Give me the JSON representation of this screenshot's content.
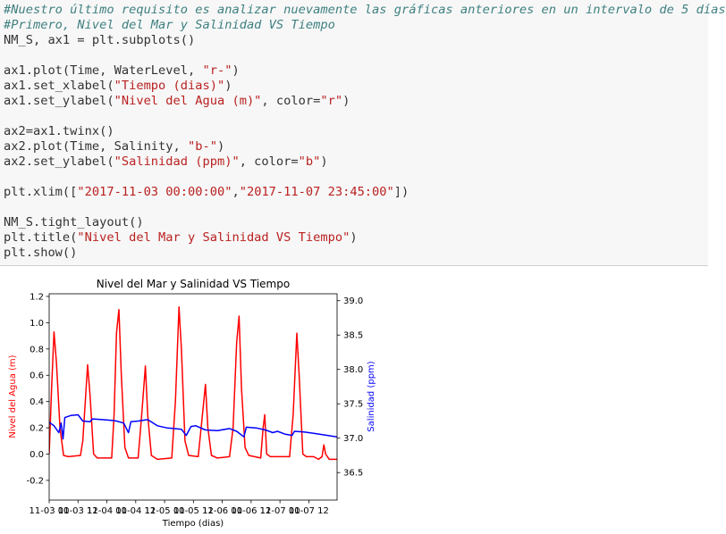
{
  "code_cell": {
    "lines": [
      {
        "tokens": [
          {
            "t": "cm",
            "v": "#Nuestro último requisito es analizar nuevamente las gráficas anteriores en un intervalo de 5 días"
          }
        ]
      },
      {
        "tokens": [
          {
            "t": "cm",
            "v": "#Primero, Nivel del Mar y Salinidad VS Tiempo"
          }
        ]
      },
      {
        "tokens": [
          {
            "t": "n",
            "v": "NM_S, ax1 = plt.subplots()"
          }
        ]
      },
      {
        "tokens": []
      },
      {
        "tokens": [
          {
            "t": "n",
            "v": "ax1.plot(Time, WaterLevel, "
          },
          {
            "t": "st",
            "v": "\"r-\""
          },
          {
            "t": "n",
            "v": ")"
          }
        ]
      },
      {
        "tokens": [
          {
            "t": "n",
            "v": "ax1.set_xlabel("
          },
          {
            "t": "st",
            "v": "\"Tiempo (dias)\""
          },
          {
            "t": "n",
            "v": ")"
          }
        ]
      },
      {
        "tokens": [
          {
            "t": "n",
            "v": "ax1.set_ylabel("
          },
          {
            "t": "st",
            "v": "\"Nivel del Agua (m)\""
          },
          {
            "t": "n",
            "v": ", color="
          },
          {
            "t": "st",
            "v": "\"r\""
          },
          {
            "t": "n",
            "v": ")"
          }
        ]
      },
      {
        "tokens": []
      },
      {
        "tokens": [
          {
            "t": "n",
            "v": "ax2=ax1.twinx()"
          }
        ]
      },
      {
        "tokens": [
          {
            "t": "n",
            "v": "ax2.plot(Time, Salinity, "
          },
          {
            "t": "st",
            "v": "\"b-\""
          },
          {
            "t": "n",
            "v": ")"
          }
        ]
      },
      {
        "tokens": [
          {
            "t": "n",
            "v": "ax2.set_ylabel("
          },
          {
            "t": "st",
            "v": "\"Salinidad (ppm)\""
          },
          {
            "t": "n",
            "v": ", color="
          },
          {
            "t": "st",
            "v": "\"b\""
          },
          {
            "t": "n",
            "v": ")"
          }
        ]
      },
      {
        "tokens": []
      },
      {
        "tokens": [
          {
            "t": "n",
            "v": "plt.xlim(["
          },
          {
            "t": "st",
            "v": "\"2017-11-03 00:00:00\""
          },
          {
            "t": "n",
            "v": ","
          },
          {
            "t": "st",
            "v": "\"2017-11-07 23:45:00\""
          },
          {
            "t": "n",
            "v": "])"
          }
        ]
      },
      {
        "tokens": []
      },
      {
        "tokens": [
          {
            "t": "n",
            "v": "NM_S.tight_layout()"
          }
        ]
      },
      {
        "tokens": [
          {
            "t": "n",
            "v": "plt.title("
          },
          {
            "t": "st",
            "v": "\"Nivel del Mar y Salinidad VS Tiempo\""
          },
          {
            "t": "n",
            "v": ")"
          }
        ]
      },
      {
        "tokens": [
          {
            "t": "n",
            "v": "plt.show()"
          }
        ]
      }
    ]
  },
  "colors": {
    "code_bg": "#f7f7f7",
    "comment": "#408080",
    "string": "#ba2121",
    "water_line": "#ff0000",
    "salinity_line": "#0000ff"
  },
  "chart_data": {
    "type": "line",
    "title": "Nivel del Mar y Salinidad VS Tiempo",
    "xlabel": "Tiempo (dias)",
    "ylabel_left": "Nivel del Agua (m)",
    "ylabel_right": "Salinidad (ppm)",
    "xlim": [
      "2017-11-03 00:00",
      "2017-11-07 23:45"
    ],
    "ylim_left": [
      -0.35,
      1.22
    ],
    "ylim_right": [
      36.1,
      39.1
    ],
    "x_tick_labels": [
      {
        "x": "2017-11-03 00:00",
        "label": "11-03 00"
      },
      {
        "x": "2017-11-03 12:00",
        "label": "11-03 12"
      },
      {
        "x": "2017-11-04 00:00",
        "label": "11-04 00"
      },
      {
        "x": "2017-11-04 12:00",
        "label": "11-04 12"
      },
      {
        "x": "2017-11-05 00:00",
        "label": "11-05 00"
      },
      {
        "x": "2017-11-05 12:00",
        "label": "11-05 12"
      },
      {
        "x": "2017-11-06 00:00",
        "label": "11-06 00"
      },
      {
        "x": "2017-11-06 12:00",
        "label": "11-06 12"
      },
      {
        "x": "2017-11-07 00:00",
        "label": "11-07 00"
      },
      {
        "x": "2017-11-07 12:00",
        "label": "11-07 12"
      }
    ],
    "y_left_ticks": [
      -0.2,
      0.0,
      0.2,
      0.4,
      0.6,
      0.8,
      1.0,
      1.2
    ],
    "y_right_ticks": [
      36.5,
      37.0,
      37.5,
      38.0,
      38.5,
      39.0
    ],
    "grid": false,
    "legend": "none",
    "series": [
      {
        "axis": "left",
        "color": "#ff0000",
        "points": [
          [
            "2017-11-03 00:00",
            0.0
          ],
          [
            "2017-11-03 01:00",
            0.5
          ],
          [
            "2017-11-03 02:00",
            0.93
          ],
          [
            "2017-11-03 03:00",
            0.7
          ],
          [
            "2017-11-03 04:30",
            0.2
          ],
          [
            "2017-11-03 06:00",
            -0.01
          ],
          [
            "2017-11-03 08:00",
            -0.02
          ],
          [
            "2017-11-03 13:00",
            -0.01
          ],
          [
            "2017-11-03 14:00",
            0.1
          ],
          [
            "2017-11-03 16:00",
            0.68
          ],
          [
            "2017-11-03 17:00",
            0.45
          ],
          [
            "2017-11-03 18:30",
            0.0
          ],
          [
            "2017-11-03 20:00",
            -0.03
          ],
          [
            "2017-11-04 02:00",
            -0.03
          ],
          [
            "2017-11-04 03:00",
            0.3
          ],
          [
            "2017-11-04 04:00",
            0.92
          ],
          [
            "2017-11-04 05:00",
            1.1
          ],
          [
            "2017-11-04 06:00",
            0.6
          ],
          [
            "2017-11-04 07:30",
            0.05
          ],
          [
            "2017-11-04 09:00",
            -0.03
          ],
          [
            "2017-11-04 13:00",
            -0.03
          ],
          [
            "2017-11-04 14:30",
            0.3
          ],
          [
            "2017-11-04 16:00",
            0.67
          ],
          [
            "2017-11-04 17:00",
            0.3
          ],
          [
            "2017-11-04 18:30",
            -0.01
          ],
          [
            "2017-11-04 21:00",
            -0.04
          ],
          [
            "2017-11-05 03:00",
            -0.03
          ],
          [
            "2017-11-05 04:30",
            0.4
          ],
          [
            "2017-11-05 06:00",
            1.12
          ],
          [
            "2017-11-05 07:00",
            0.8
          ],
          [
            "2017-11-05 08:30",
            0.1
          ],
          [
            "2017-11-05 10:00",
            -0.01
          ],
          [
            "2017-11-05 14:00",
            -0.02
          ],
          [
            "2017-11-05 15:30",
            0.25
          ],
          [
            "2017-11-05 17:00",
            0.53
          ],
          [
            "2017-11-05 18:00",
            0.2
          ],
          [
            "2017-11-05 19:30",
            -0.01
          ],
          [
            "2017-11-05 22:00",
            -0.03
          ],
          [
            "2017-11-06 03:00",
            -0.02
          ],
          [
            "2017-11-06 04:30",
            0.2
          ],
          [
            "2017-11-06 06:00",
            0.85
          ],
          [
            "2017-11-06 07:00",
            1.05
          ],
          [
            "2017-11-06 08:00",
            0.5
          ],
          [
            "2017-11-06 09:30",
            0.05
          ],
          [
            "2017-11-06 11:00",
            -0.01
          ],
          [
            "2017-11-06 16:00",
            -0.03
          ],
          [
            "2017-11-06 17:00",
            0.2
          ],
          [
            "2017-11-06 17:40",
            0.3
          ],
          [
            "2017-11-06 18:30",
            0.0
          ],
          [
            "2017-11-06 20:00",
            -0.02
          ],
          [
            "2017-11-07 04:00",
            -0.02
          ],
          [
            "2017-11-07 05:30",
            0.3
          ],
          [
            "2017-11-07 07:00",
            0.92
          ],
          [
            "2017-11-07 08:00",
            0.6
          ],
          [
            "2017-11-07 09:30",
            0.0
          ],
          [
            "2017-11-07 11:00",
            -0.02
          ],
          [
            "2017-11-07 14:00",
            -0.02
          ],
          [
            "2017-11-07 16:00",
            -0.04
          ],
          [
            "2017-11-07 17:30",
            -0.02
          ],
          [
            "2017-11-07 18:15",
            0.07
          ],
          [
            "2017-11-07 19:00",
            0.0
          ],
          [
            "2017-11-07 20:30",
            -0.04
          ],
          [
            "2017-11-07 23:45",
            -0.04
          ]
        ]
      },
      {
        "axis": "right",
        "color": "#0000ff",
        "points": [
          [
            "2017-11-03 00:00",
            37.23
          ],
          [
            "2017-11-03 02:00",
            37.18
          ],
          [
            "2017-11-03 04:00",
            37.08
          ],
          [
            "2017-11-03 05:00",
            37.22
          ],
          [
            "2017-11-03 05:45",
            36.99
          ],
          [
            "2017-11-03 06:30",
            37.3
          ],
          [
            "2017-11-03 09:00",
            37.33
          ],
          [
            "2017-11-03 12:00",
            37.34
          ],
          [
            "2017-11-03 14:00",
            37.25
          ],
          [
            "2017-11-03 17:00",
            37.24
          ],
          [
            "2017-11-03 18:00",
            37.28
          ],
          [
            "2017-11-03 22:00",
            37.27
          ],
          [
            "2017-11-04 02:00",
            37.26
          ],
          [
            "2017-11-04 04:00",
            37.25
          ],
          [
            "2017-11-04 07:00",
            37.22
          ],
          [
            "2017-11-04 09:00",
            37.08
          ],
          [
            "2017-11-04 10:00",
            37.24
          ],
          [
            "2017-11-04 13:00",
            37.25
          ],
          [
            "2017-11-04 17:00",
            37.27
          ],
          [
            "2017-11-04 21:00",
            37.18
          ],
          [
            "2017-11-05 01:00",
            37.15
          ],
          [
            "2017-11-05 04:00",
            37.14
          ],
          [
            "2017-11-05 07:00",
            37.13
          ],
          [
            "2017-11-05 09:00",
            37.04
          ],
          [
            "2017-11-05 11:00",
            37.17
          ],
          [
            "2017-11-05 13:00",
            37.18
          ],
          [
            "2017-11-05 17:00",
            37.12
          ],
          [
            "2017-11-05 22:00",
            37.11
          ],
          [
            "2017-11-06 03:00",
            37.14
          ],
          [
            "2017-11-06 06:00",
            37.1
          ],
          [
            "2017-11-06 09:00",
            37.02
          ],
          [
            "2017-11-06 10:00",
            37.16
          ],
          [
            "2017-11-06 14:00",
            37.15
          ],
          [
            "2017-11-06 18:00",
            37.12
          ],
          [
            "2017-11-06 21:00",
            37.08
          ],
          [
            "2017-11-06 23:00",
            37.1
          ],
          [
            "2017-11-07 02:00",
            37.06
          ],
          [
            "2017-11-07 05:00",
            37.04
          ],
          [
            "2017-11-07 06:00",
            37.1
          ],
          [
            "2017-11-07 10:00",
            37.09
          ],
          [
            "2017-11-07 14:00",
            37.07
          ],
          [
            "2017-11-07 18:00",
            37.05
          ],
          [
            "2017-11-07 23:45",
            37.02
          ]
        ]
      }
    ]
  }
}
